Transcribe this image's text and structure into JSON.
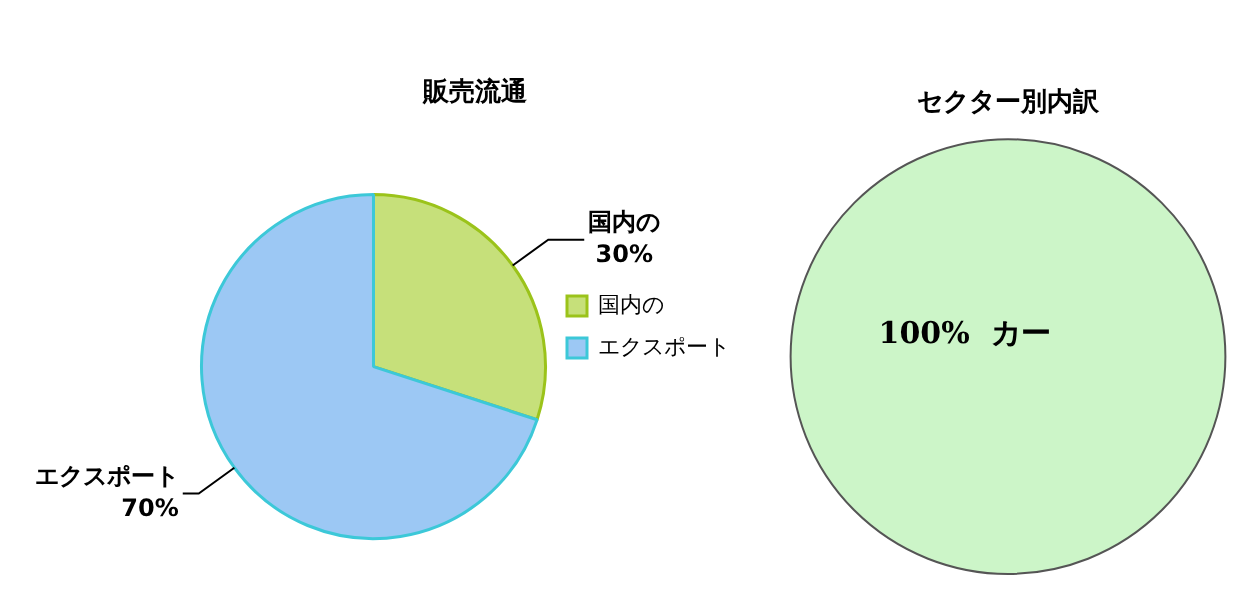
{
  "chart_data": [
    {
      "type": "pie",
      "title": "販売流通",
      "categories": [
        "国内の",
        "エクスポート"
      ],
      "values": [
        30,
        70
      ],
      "colors": [
        "#c6e07a",
        "#9cc8f4"
      ],
      "value_labels": [
        "30%",
        "70%"
      ],
      "legend": "right"
    },
    {
      "type": "pie",
      "title": "セクター別内訳",
      "categories": [
        "カー"
      ],
      "values": [
        100
      ],
      "colors": [
        "#ccf5c8"
      ],
      "value_labels": [
        "100%"
      ]
    }
  ]
}
